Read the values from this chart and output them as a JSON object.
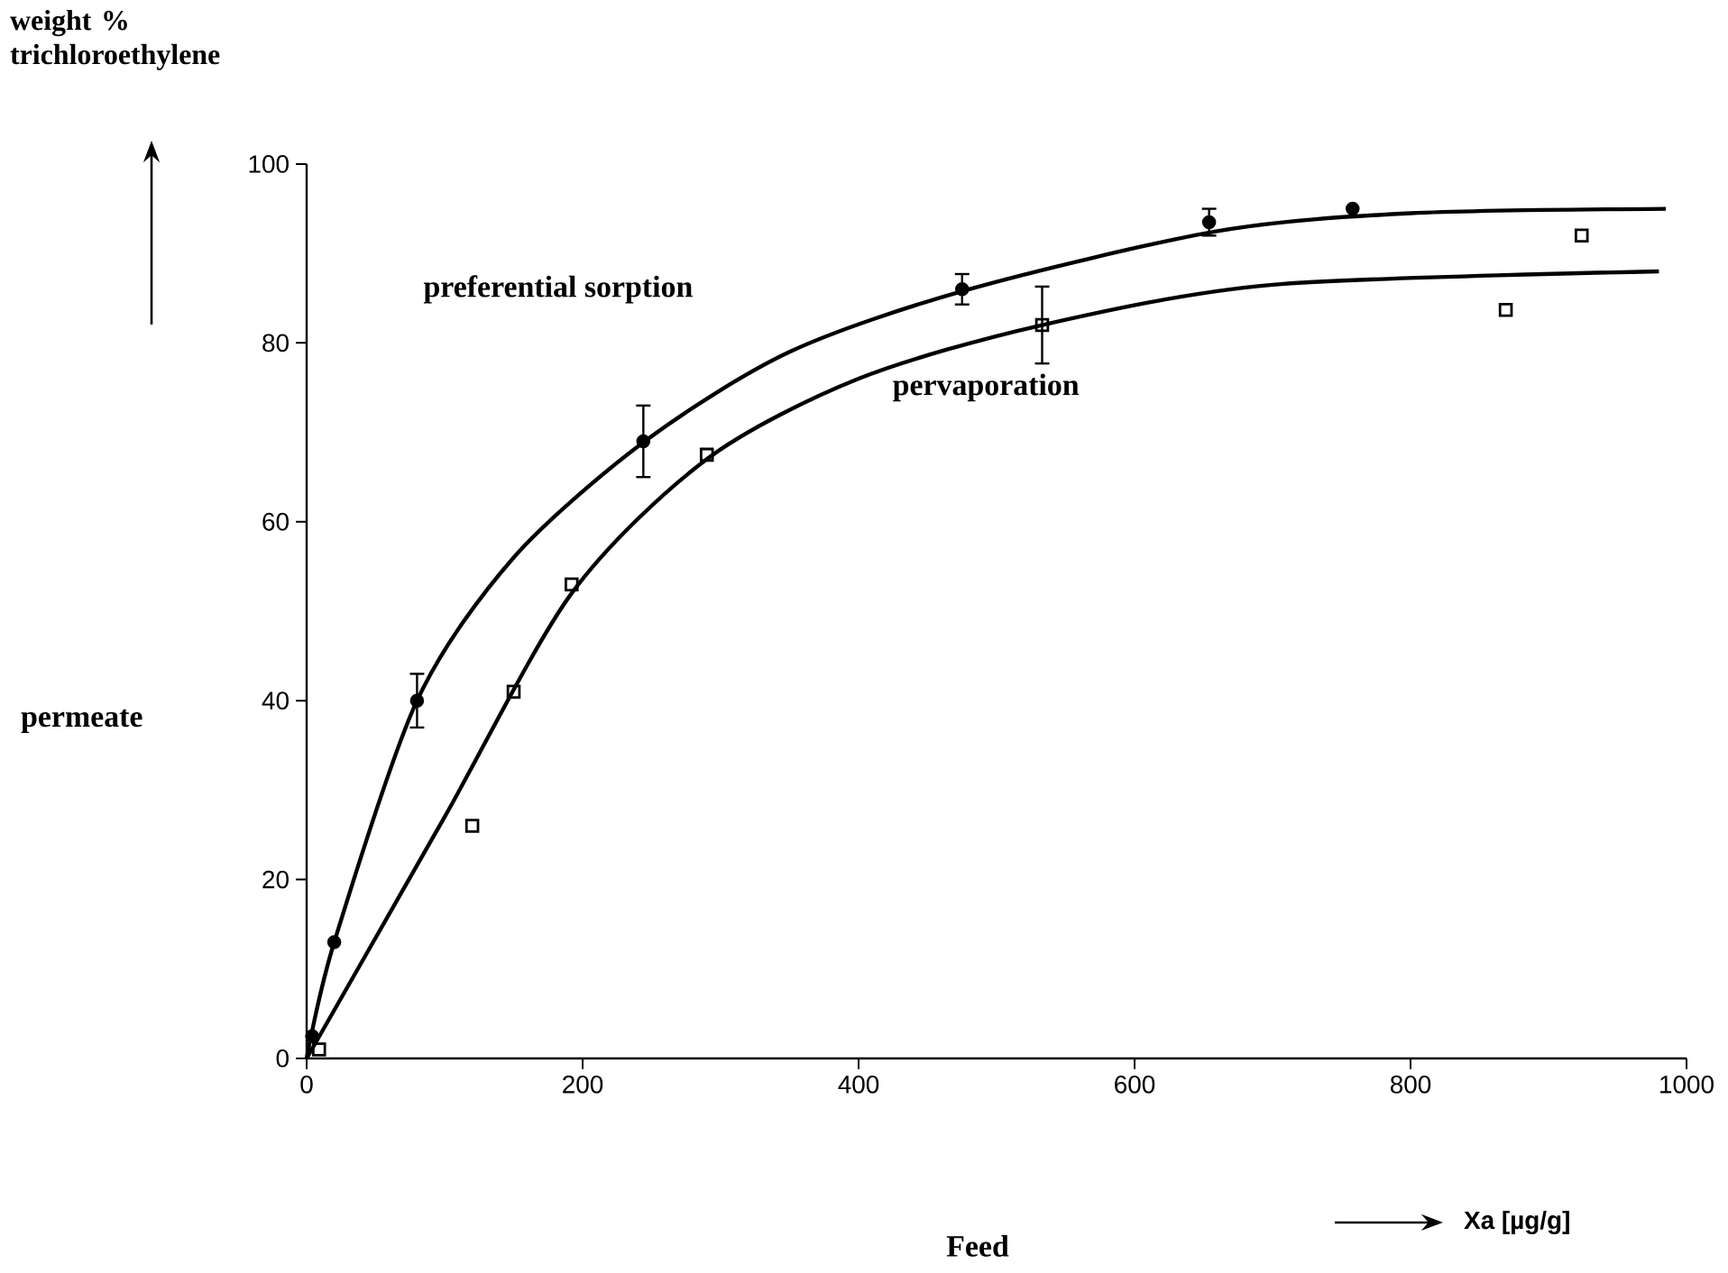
{
  "chart_data": {
    "type": "scatter",
    "xlabel": "Xa [µg/g]",
    "ylabel": "permeate",
    "annotations": [
      "weight % trichloroethylene",
      "Feed"
    ],
    "xlim": [
      0,
      1000
    ],
    "ylim": [
      0,
      100
    ],
    "xticks": [
      0,
      200,
      400,
      600,
      800,
      1000
    ],
    "yticks": [
      0,
      20,
      40,
      60,
      80,
      100
    ],
    "series": [
      {
        "type": "line",
        "name": "preferential sorption",
        "color": "#000000",
        "marker": "none",
        "x": [
          0,
          20,
          80,
          150,
          245,
          350,
          480,
          660,
          800,
          985
        ],
        "values": [
          0,
          13,
          40,
          56,
          69,
          79,
          86,
          92.5,
          94.5,
          95
        ]
      },
      {
        "type": "line",
        "name": "pervaporation",
        "color": "#000000",
        "marker": "none",
        "x": [
          0,
          100,
          192,
          290,
          400,
          533,
          700,
          980
        ],
        "values": [
          0,
          27,
          52,
          67,
          76,
          82,
          86.5,
          88
        ]
      },
      {
        "type": "scatter",
        "color": "#000000",
        "marker": "circle",
        "x": [
          4,
          20,
          80,
          244,
          475,
          654,
          758
        ],
        "values": [
          2.5,
          13,
          40,
          69,
          86,
          93.5,
          95
        ],
        "errors": [
          null,
          null,
          3,
          4,
          1.7,
          1.5,
          null
        ]
      },
      {
        "type": "scatter",
        "color": "#000000",
        "marker": "square",
        "x": [
          9,
          120,
          150,
          192,
          290,
          533,
          869,
          924
        ],
        "values": [
          1,
          26,
          41,
          53,
          67.5,
          82,
          83.7,
          92
        ],
        "errors": [
          null,
          null,
          null,
          null,
          null,
          4.3,
          null,
          null
        ]
      }
    ]
  }
}
